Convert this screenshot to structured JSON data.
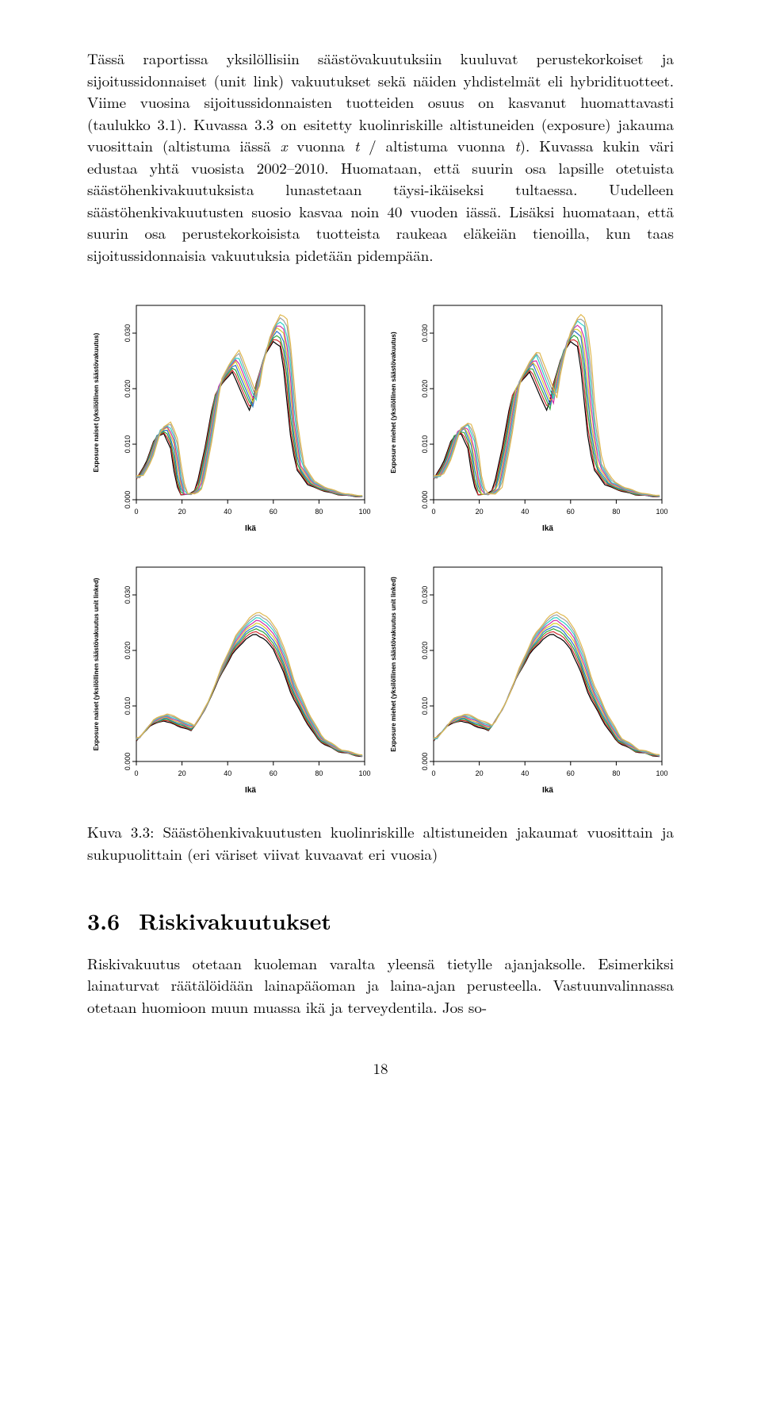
{
  "paragraph1": "Tässä raportissa yksilöllisiin säästövakuutuksiin kuuluvat perustekorkoiset ja sijoitussidonnaiset (unit link) vakuutukset sekä näiden yhdistelmät eli hybridituotteet. Viime vuosina sijoitussidonnaisten tuotteiden osuus on kasvanut huomattavasti (taulukko 3.1). Kuvassa 3.3 on esitetty kuolinriskille altistuneiden (exposure) jakauma vuosittain (altistuma iässä ",
  "math1a": "x",
  "paragraph1b": " vuonna ",
  "math1b": "t",
  "paragraph1c": " / altistuma vuonna ",
  "math1c": "t",
  "paragraph1d": "). Kuvassa kukin väri edustaa yhtä vuosista 2002–2010. Huomataan, että suurin osa lapsille otetuista säästöhenkivakuutuksista lunastetaan täysi-ikäiseksi tultaessa. Uudelleen säästöhenkivakuutusten suosio kasvaa noin 40 vuoden iässä. Lisäksi huomataan, että suurin osa perustekorkoisista tuotteista raukeaa eläkeiän tienoilla, kun taas sijoitussidonnaisia vakuutuksia pidetään pidempään.",
  "figCaption": "Kuva 3.3: Säästöhenkivakuutusten kuolinriskille altistuneiden jakaumat vuosittain ja sukupuolittain (eri väriset viivat kuvaavat eri vuosia)",
  "sectionNumber": "3.6",
  "sectionTitle": "Riskivakuutukset",
  "paragraph2": "Riskivakuutus otetaan kuoleman varalta yleensä tietylle ajanjaksolle. Esimerkiksi lainaturvat räätälöidään lainapääoman ja laina-ajan perusteella. Vastuunvalinnassa otetaan huomioon muun muassa ikä ja terveydentila. Jos so-",
  "pageNumber": "18",
  "charts": {
    "common": {
      "xlim": [
        0,
        100
      ],
      "xticks": [
        0,
        20,
        40,
        60,
        80,
        100
      ],
      "ylim": [
        0,
        0.035
      ],
      "yticks": [
        0.0,
        0.01,
        0.02,
        0.03
      ],
      "ytick_labels": [
        "0.000",
        "0.010",
        "0.020",
        "0.030"
      ],
      "xlabel": "Ikä",
      "colors": [
        "#000000",
        "#d12f2f",
        "#2fa83a",
        "#2f6fd1",
        "#d9cf2f",
        "#d12fa8",
        "#2fd1c7",
        "#9f9f9f",
        "#e0b84f"
      ],
      "axis_color": "#000000",
      "label_fontsize": 10,
      "tick_fontsize": 9,
      "line_width": 1.2,
      "background_color": "#ffffff",
      "plot_border_color": "#000000"
    },
    "panels": [
      {
        "id": "topleft",
        "ylabel": "Exposure naiset (yksilöllinen säästövakuutus)",
        "shape": "A",
        "shifts": [
          0,
          0.4,
          0.8,
          1.2,
          1.6,
          2.0,
          2.4,
          2.8,
          3.2
        ],
        "y_noise": 0.05
      },
      {
        "id": "topright",
        "ylabel": "Exposure miehet (yksilöllinen säästövakuutus)",
        "shape": "A",
        "shifts": [
          0,
          0.5,
          1.0,
          1.5,
          2.0,
          2.5,
          3.0,
          3.5,
          4.0
        ],
        "y_noise": 0.06
      },
      {
        "id": "botleft",
        "ylabel": "Exposure naiset (yksilöllinen säästövakuutus unit linked)",
        "shape": "B",
        "shifts": [
          0,
          0.2,
          0.4,
          0.6,
          0.8,
          1.0,
          1.2,
          1.4,
          1.6
        ],
        "y_noise": 0.08
      },
      {
        "id": "botright",
        "ylabel": "Exposure miehet (yksilöllinen säästövakuutus unit linked)",
        "shape": "B",
        "shifts": [
          0,
          0.25,
          0.5,
          0.75,
          1.0,
          1.25,
          1.5,
          1.75,
          2.0
        ],
        "y_noise": 0.1
      }
    ],
    "shapes": {
      "A": [
        [
          0,
          0.004
        ],
        [
          4,
          0.007
        ],
        [
          8,
          0.012
        ],
        [
          12,
          0.013
        ],
        [
          15,
          0.01
        ],
        [
          17,
          0.004
        ],
        [
          19,
          0.001
        ],
        [
          23,
          0.001
        ],
        [
          26,
          0.002
        ],
        [
          30,
          0.01
        ],
        [
          34,
          0.02
        ],
        [
          38,
          0.023
        ],
        [
          42,
          0.025
        ],
        [
          45,
          0.022
        ],
        [
          48,
          0.019
        ],
        [
          50,
          0.017
        ],
        [
          52,
          0.022
        ],
        [
          56,
          0.028
        ],
        [
          60,
          0.031
        ],
        [
          63,
          0.03
        ],
        [
          65,
          0.024
        ],
        [
          67,
          0.014
        ],
        [
          70,
          0.006
        ],
        [
          75,
          0.003
        ],
        [
          80,
          0.002
        ],
        [
          88,
          0.001
        ],
        [
          100,
          0.0005
        ]
      ],
      "B": [
        [
          0,
          0.004
        ],
        [
          6,
          0.007
        ],
        [
          12,
          0.008
        ],
        [
          18,
          0.007
        ],
        [
          24,
          0.006
        ],
        [
          30,
          0.01
        ],
        [
          36,
          0.016
        ],
        [
          42,
          0.021
        ],
        [
          48,
          0.024
        ],
        [
          52,
          0.025
        ],
        [
          56,
          0.024
        ],
        [
          60,
          0.022
        ],
        [
          64,
          0.018
        ],
        [
          68,
          0.013
        ],
        [
          74,
          0.008
        ],
        [
          80,
          0.004
        ],
        [
          88,
          0.002
        ],
        [
          100,
          0.0008
        ]
      ]
    }
  }
}
